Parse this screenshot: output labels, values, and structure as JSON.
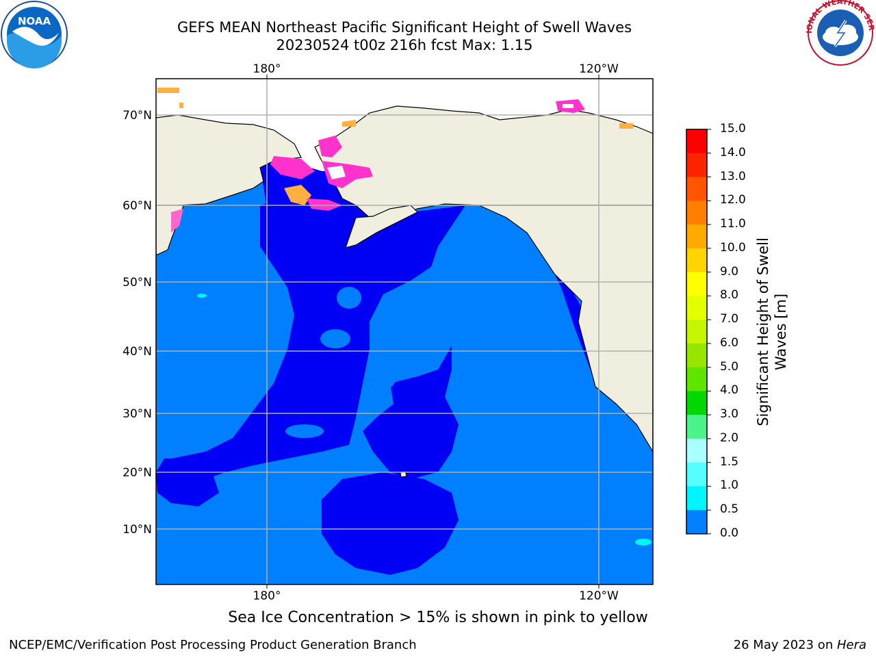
{
  "header": {
    "title_line1": "GEFS MEAN Northeast Pacific Significant Height of Swell Waves",
    "title_line2": "20230524 t00z 216h fcst   Max: 1.15"
  },
  "logos": {
    "left": {
      "name": "noaa-logo",
      "text": "NOAA"
    },
    "right": {
      "name": "national-weather-service-logo",
      "text": "NATIONAL WEATHER SERVICE"
    }
  },
  "map": {
    "lon_ticks_top": [
      "180°",
      "120°W"
    ],
    "lon_ticks_bottom": [
      "180°",
      "120°W"
    ],
    "lat_ticks": [
      "70°N",
      "60°N",
      "50°N",
      "40°N",
      "30°N",
      "20°N",
      "10°N"
    ],
    "colors": {
      "ocean_low": "#0000f5",
      "ocean_mid": "#0080ff",
      "land": "#efeedf",
      "grid": "#b0b0b0"
    }
  },
  "colorbar": {
    "label_line1": "Significant Height of Swell",
    "label_line2": "Waves [m]",
    "ticks": [
      "15.0",
      "14.0",
      "13.0",
      "12.0",
      "11.0",
      "10.0",
      "9.0",
      "8.0",
      "7.0",
      "6.0",
      "5.0",
      "4.0",
      "3.0",
      "2.0",
      "1.5",
      "1.0",
      "0.5",
      "0.0"
    ],
    "colors": [
      "#ff0000",
      "#ff2400",
      "#ff5500",
      "#ff7f00",
      "#ffaa00",
      "#ffd400",
      "#ffff00",
      "#e3ff00",
      "#c6f500",
      "#96e600",
      "#5fe500",
      "#00d800",
      "#4cf28a",
      "#aaffff",
      "#55ffff",
      "#00f5ff",
      "#0080ff",
      "#0000f5"
    ]
  },
  "footer": {
    "caption": "Sea Ice Concentration > 15% is shown in pink to yellow",
    "credit_left": "NCEP/EMC/Verification Post Processing Product Generation Branch",
    "credit_right_prefix": "26 May 2023 on ",
    "credit_right_host": "Hera"
  }
}
